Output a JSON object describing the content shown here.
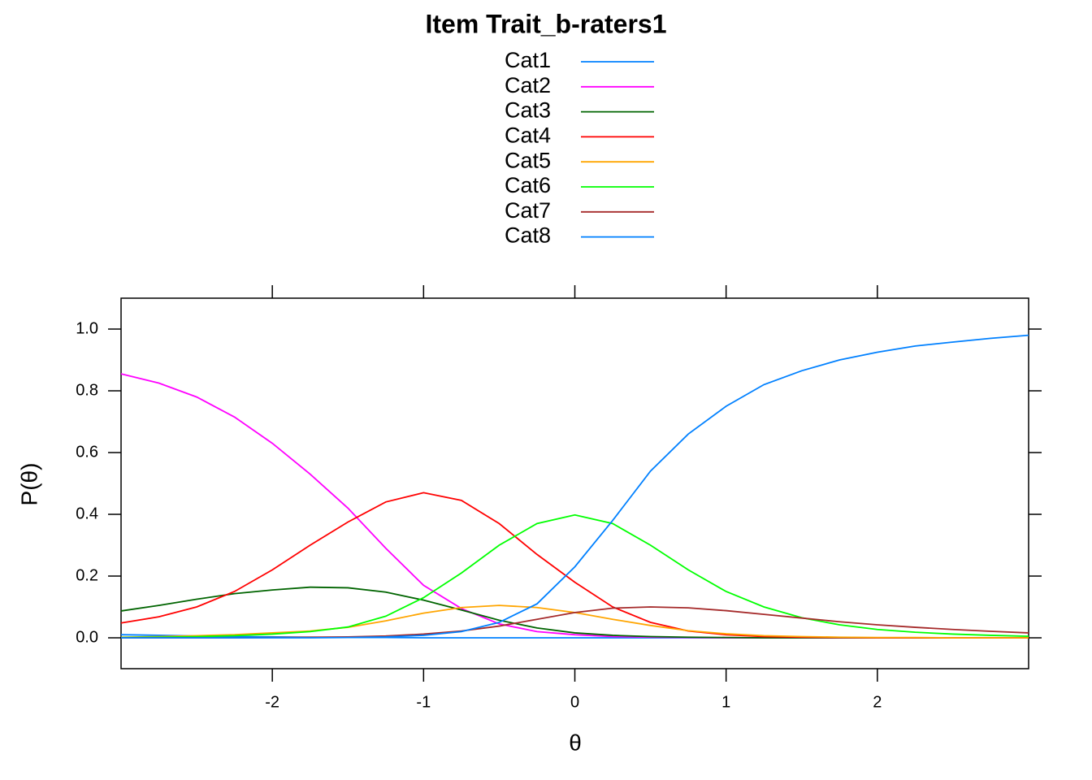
{
  "chart_data": {
    "type": "line",
    "title": "Item Trait_b-raters1",
    "x_label": "θ",
    "y_label": "P(θ)",
    "x": [
      -3,
      -2.75,
      -2.5,
      -2.25,
      -2,
      -1.75,
      -1.5,
      -1.25,
      -1,
      -0.75,
      -0.5,
      -0.25,
      0,
      0.25,
      0.5,
      0.75,
      1,
      1.25,
      1.5,
      1.75,
      2,
      2.25,
      2.5,
      2.75,
      3
    ],
    "series": [
      {
        "name": "Cat1",
        "color": "#0080ff",
        "values": [
          0.01,
          0.008,
          0.006,
          0.004,
          0.003,
          0.002,
          0.001,
          0.001,
          0,
          0,
          0,
          0,
          0,
          0,
          0,
          0,
          0,
          0,
          0,
          0,
          0,
          0,
          0,
          0,
          0
        ]
      },
      {
        "name": "Cat2",
        "color": "#ff00ff",
        "values": [
          0.855,
          0.825,
          0.78,
          0.715,
          0.63,
          0.53,
          0.42,
          0.29,
          0.17,
          0.095,
          0.045,
          0.02,
          0.01,
          0.004,
          0.002,
          0.001,
          0,
          0,
          0,
          0,
          0,
          0,
          0,
          0,
          0
        ]
      },
      {
        "name": "Cat3",
        "color": "#006400",
        "values": [
          0.087,
          0.105,
          0.125,
          0.143,
          0.155,
          0.164,
          0.162,
          0.148,
          0.122,
          0.09,
          0.057,
          0.032,
          0.016,
          0.008,
          0.004,
          0.002,
          0.001,
          0,
          0,
          0,
          0,
          0,
          0,
          0,
          0
        ]
      },
      {
        "name": "Cat4",
        "color": "#ff0000",
        "values": [
          0.048,
          0.068,
          0.1,
          0.15,
          0.22,
          0.3,
          0.375,
          0.44,
          0.47,
          0.445,
          0.37,
          0.27,
          0.18,
          0.1,
          0.05,
          0.022,
          0.01,
          0.004,
          0.002,
          0.001,
          0,
          0,
          0,
          0,
          0
        ]
      },
      {
        "name": "Cat5",
        "color": "#ffa500",
        "values": [
          0.002,
          0.004,
          0.007,
          0.01,
          0.016,
          0.022,
          0.034,
          0.055,
          0.08,
          0.098,
          0.105,
          0.098,
          0.082,
          0.06,
          0.04,
          0.023,
          0.013,
          0.007,
          0.004,
          0.002,
          0.001,
          0.001,
          0,
          0,
          0
        ]
      },
      {
        "name": "Cat6",
        "color": "#00ff00",
        "values": [
          0.001,
          0.002,
          0.004,
          0.007,
          0.012,
          0.02,
          0.035,
          0.07,
          0.13,
          0.21,
          0.3,
          0.37,
          0.398,
          0.37,
          0.3,
          0.22,
          0.15,
          0.1,
          0.065,
          0.042,
          0.027,
          0.018,
          0.012,
          0.008,
          0.005
        ]
      },
      {
        "name": "Cat7",
        "color": "#a52a2a",
        "values": [
          0,
          0,
          0,
          0,
          0.001,
          0.002,
          0.003,
          0.006,
          0.012,
          0.022,
          0.038,
          0.06,
          0.082,
          0.096,
          0.1,
          0.097,
          0.088,
          0.076,
          0.064,
          0.052,
          0.042,
          0.034,
          0.027,
          0.021,
          0.016
        ]
      },
      {
        "name": "Cat8",
        "color": "#0080ff",
        "values": [
          0,
          0,
          0,
          0,
          0,
          0,
          0.001,
          0.003,
          0.008,
          0.02,
          0.05,
          0.11,
          0.23,
          0.38,
          0.54,
          0.66,
          0.75,
          0.82,
          0.865,
          0.9,
          0.925,
          0.945,
          0.958,
          0.97,
          0.98
        ]
      }
    ],
    "xlim": [
      -3,
      3
    ],
    "xticks": [
      -2,
      -1,
      0,
      1,
      2
    ],
    "ylim": [
      -0.1,
      1.1
    ],
    "yticks": [
      {
        "value": 0,
        "label": "0.0"
      },
      0.2,
      0.4,
      0.6,
      0.8,
      {
        "value": 1,
        "label": "1.0"
      }
    ],
    "legend": "top"
  }
}
